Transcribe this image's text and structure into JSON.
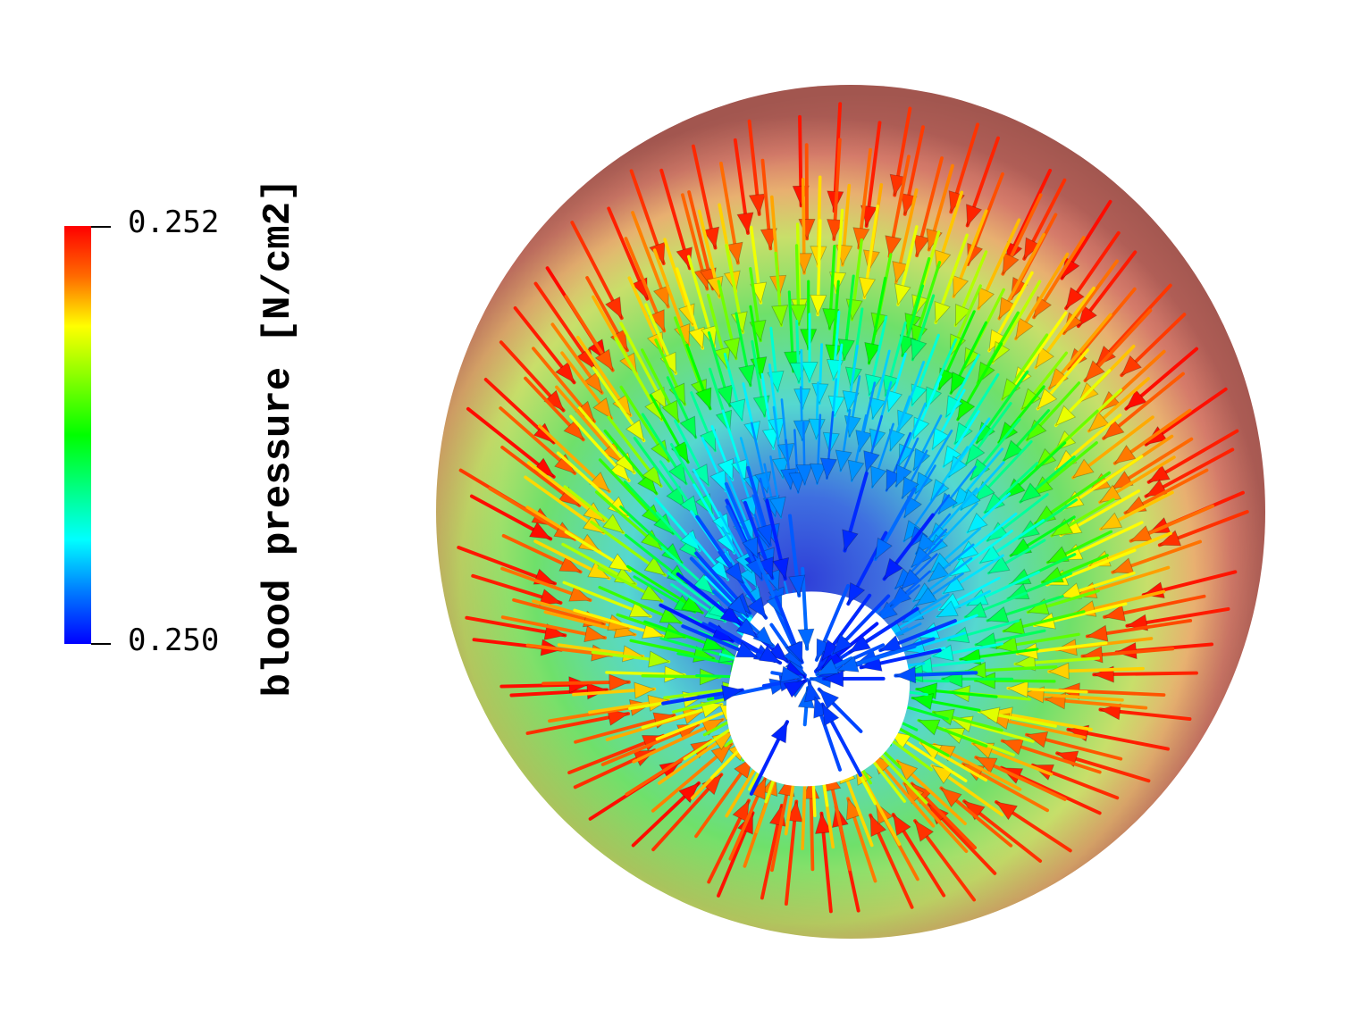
{
  "colorbar": {
    "title": "blood pressure [N/cm2]",
    "max_label": "0.252",
    "min_label": "0.250",
    "colormap": [
      "#0000ff",
      "#0080ff",
      "#00ffff",
      "#00ff00",
      "#ffff00",
      "#ff6a00",
      "#ff0000"
    ]
  },
  "scene": {
    "shell_color": "#c06a5e",
    "hole_color": "#ffffff"
  }
}
